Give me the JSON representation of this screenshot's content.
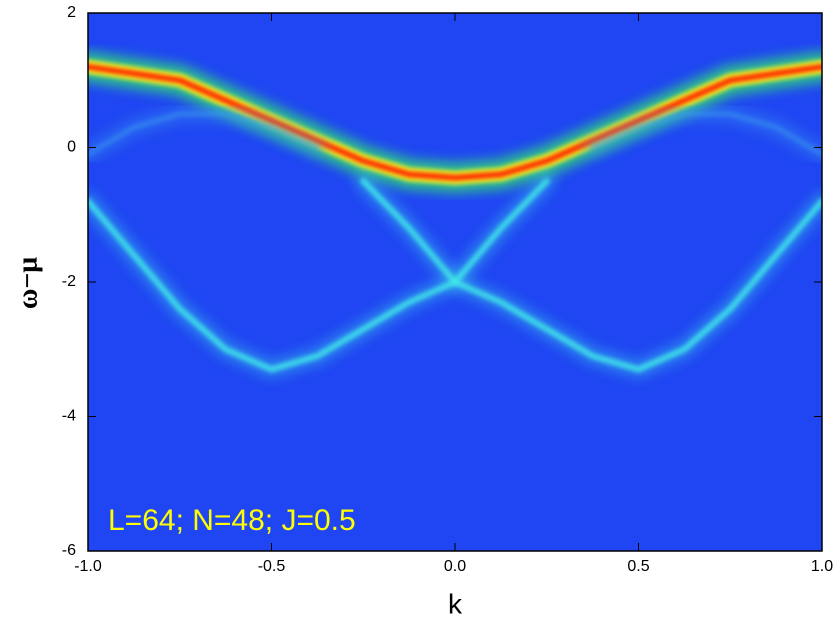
{
  "chart_data": {
    "type": "line",
    "x_label": "k",
    "y_label": "ω−μ",
    "annotation": "L=64; N=48; J=0.5",
    "background": "#1f46f2",
    "xlim": [
      -1,
      1
    ],
    "ylim": [
      -6,
      2
    ],
    "xticks": [
      {
        "value": -1,
        "label": "-1.0"
      },
      -0.5,
      {
        "value": 0,
        "label": "0.0"
      },
      0.5,
      {
        "value": 1,
        "label": "1.0"
      }
    ],
    "yticks": [
      -6,
      -4,
      -2,
      0,
      2
    ],
    "x": [
      -1,
      -0.875,
      -0.75,
      -0.625,
      -0.5,
      -0.375,
      -0.25,
      -0.125,
      0,
      0.125,
      0.25,
      0.375,
      0.5,
      0.625,
      0.75,
      0.875,
      1
    ],
    "series": [
      {
        "color": "#ff2a00",
        "values": [
          1.2,
          1.1,
          1.0,
          0.7,
          0.4,
          0.1,
          -0.2,
          -0.4,
          -0.45,
          -0.4,
          -0.2,
          0.1,
          0.4,
          0.7,
          1.0,
          1.1,
          1.2
        ]
      },
      {
        "color": "#40e8e8",
        "values": [
          -0.8,
          -1.6,
          -2.4,
          -3.0,
          -3.3,
          -3.1,
          -2.7,
          -2.3,
          -2.0,
          -1.2,
          -0.5,
          null,
          null,
          null,
          null,
          null,
          null
        ]
      },
      {
        "color": "#40e8e8",
        "values": [
          null,
          null,
          null,
          null,
          null,
          null,
          -0.5,
          -1.2,
          -2.0,
          -2.3,
          -2.7,
          -3.1,
          -3.3,
          -3.0,
          -2.4,
          -1.6,
          -0.8
        ]
      },
      {
        "color": "#3a9cf0",
        "values": [
          -0.1,
          0.3,
          0.5,
          0.5,
          0.3,
          0.0,
          null,
          null,
          null,
          null,
          null,
          0.0,
          0.3,
          0.5,
          0.5,
          0.3,
          -0.1
        ]
      }
    ]
  }
}
